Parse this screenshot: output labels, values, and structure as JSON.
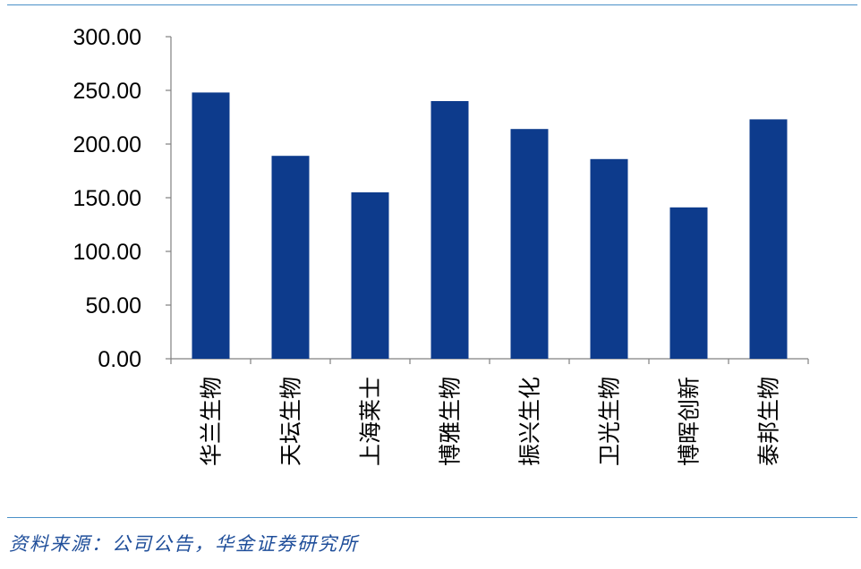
{
  "chart_data": {
    "type": "bar",
    "categories": [
      "华兰生物",
      "天坛生物",
      "上海莱士",
      "博雅生物",
      "振兴生化",
      "卫光生物",
      "博晖创新",
      "泰邦生物"
    ],
    "values": [
      248,
      189,
      155,
      240,
      214,
      186,
      141,
      223
    ],
    "ylim": [
      0,
      300
    ],
    "yticks": [
      "0.00",
      "50.00",
      "100.00",
      "150.00",
      "200.00",
      "250.00",
      "300.00"
    ],
    "bar_color": "#0d3b8c",
    "grid": false,
    "legend": "none"
  },
  "footer": {
    "source": "资料来源：公司公告，华金证券研究所"
  }
}
